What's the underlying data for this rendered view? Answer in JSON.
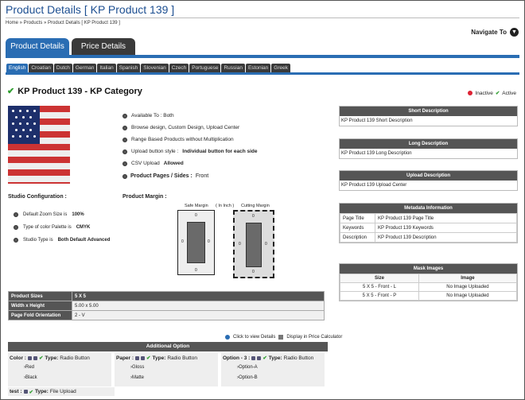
{
  "header": {
    "title": "Product Details [ KP Product 139 ]",
    "breadcrumb": "Home » Products » Product Details [ KP Product 139 ]",
    "navigate_label": "Navigate To",
    "navigate_icon": "chevron-down-icon"
  },
  "main_tabs": [
    {
      "label": "Product Details",
      "active": true
    },
    {
      "label": "Price Details",
      "active": false
    }
  ],
  "languages": [
    "English",
    "Croatian",
    "Dutch",
    "German",
    "Italian",
    "Spanish",
    "Slovenian",
    "Czech",
    "Portuguese",
    "Russian",
    "Estonian",
    "Greek"
  ],
  "product": {
    "heading": "KP Product 139 - KP Category",
    "legend_inactive": "Inactive",
    "legend_active": "Active"
  },
  "info": {
    "available": "Available To : Both",
    "browse": "Browse design, Custom Design, Upload Center",
    "range": "Range Based Products without Multiplication",
    "upload_style_label": "Upload button style :",
    "upload_style_value": "Individual button for each side",
    "csv_label": "CSV Upload",
    "csv_value": "Allowed",
    "pages_label": "Product Pages / Sides :",
    "pages_value": "Front"
  },
  "studio": {
    "label": "Studio Configuration :",
    "zoom_label": "Default Zoom Size is",
    "zoom_value": "100%",
    "palette_label": "Type of color Palette is",
    "palette_value": "CMYK",
    "type_label": "Studio Type is",
    "type_value": "Both Default Advanced"
  },
  "margin": {
    "label": "Product Margin :",
    "safe_label": "Safe Margin",
    "unit_label": "( In Inch )",
    "cutting_label": "Cutting Margin",
    "zero": "0"
  },
  "specs": [
    {
      "key": "Product Sizes",
      "value": "5 X 5"
    },
    {
      "key": "Width x Height",
      "value": "5.00 x 5.00"
    },
    {
      "key": "Page Fold Orientation",
      "value": "2 - V"
    }
  ],
  "links": {
    "view_details": "Click to view Details",
    "price_calc": "Display in Price Calculator"
  },
  "additional": {
    "title": "Additional Option",
    "options": [
      {
        "name": "Color :",
        "type_label": "Type:",
        "type_value": "Radio Button",
        "values": [
          "Red",
          "Black"
        ]
      },
      {
        "name": "Paper :",
        "type_label": "Type:",
        "type_value": "Radio Button",
        "values": [
          "Gloss",
          "Matte"
        ]
      },
      {
        "name": "Option - 3 :",
        "type_label": "Type:",
        "type_value": "Radio Button",
        "values": [
          "Option-A",
          "Option-B"
        ]
      }
    ],
    "test": {
      "name": "test :",
      "type_label": "Type:",
      "type_value": "File Upload"
    }
  },
  "side": {
    "short_title": "Short Description",
    "short_value": "KP Product 139 Short Description",
    "long_title": "Long Description",
    "long_value": "KP Product 139 Long  Description",
    "upload_title": "Upload Description",
    "upload_value": "KP Product 139 Upload Center",
    "meta_title": "Metadata Information",
    "meta": [
      {
        "key": "Page Title",
        "value": "KP Product 139 Page Title"
      },
      {
        "key": "Keywords",
        "value": "KP Product 139 Keywords"
      },
      {
        "key": "Description",
        "value": "KP Product 139 Description"
      }
    ],
    "mask_title": "Mask Images",
    "mask_headers": [
      "Size",
      "Image"
    ],
    "mask_rows": [
      {
        "size": "5 X 5 - Front - L",
        "image": "No Image Uploaded"
      },
      {
        "size": "5 X 5 - Front - P",
        "image": "No Image Uploaded"
      }
    ]
  },
  "colors": {
    "accent": "#2a6db3",
    "dark": "#3a3a3a",
    "header_gray": "#555555",
    "active_green": "#2e9e2e",
    "inactive_red": "#dd2233"
  }
}
